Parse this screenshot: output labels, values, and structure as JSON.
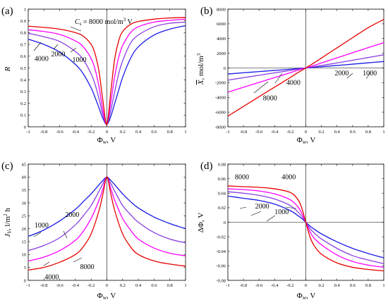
{
  "colors": {
    "c1000": "#1a1ae6",
    "c2000": "#8a3ee0",
    "c4000": "#ff00ff",
    "c8000": "#e60000"
  },
  "chart_data": [
    {
      "id": "a",
      "type": "line",
      "panel_label": "(a)",
      "xlabel": "Φw, V",
      "ylabel": "R",
      "xlim": [
        -1,
        1
      ],
      "ylim": [
        0,
        1
      ],
      "xticks": [
        "-1",
        "-0.8",
        "-0.6",
        "-0.4",
        "-0.2",
        "0",
        "0.2",
        "0.4",
        "0.6",
        "0.8",
        "1"
      ],
      "yticks": [
        "0",
        "0.1",
        "0.2",
        "0.3",
        "0.4",
        "0.5",
        "0.6",
        "0.7",
        "0.8",
        "0.9",
        "1"
      ],
      "x": [
        -1,
        -0.8,
        -0.6,
        -0.4,
        -0.3,
        -0.2,
        -0.15,
        -0.1,
        -0.05,
        0,
        0.05,
        0.1,
        0.15,
        0.2,
        0.3,
        0.4,
        0.6,
        0.8,
        1
      ],
      "series": [
        {
          "name": "1000",
          "color": "c1000",
          "values": [
            0.745,
            0.7,
            0.635,
            0.53,
            0.45,
            0.33,
            0.25,
            0.16,
            0.07,
            0.02,
            0.09,
            0.2,
            0.31,
            0.42,
            0.58,
            0.68,
            0.78,
            0.83,
            0.86
          ]
        },
        {
          "name": "2000",
          "color": "c2000",
          "values": [
            0.795,
            0.765,
            0.725,
            0.64,
            0.57,
            0.45,
            0.36,
            0.24,
            0.1,
            0.02,
            0.14,
            0.3,
            0.45,
            0.56,
            0.71,
            0.78,
            0.85,
            0.88,
            0.89
          ]
        },
        {
          "name": "4000",
          "color": "c4000",
          "values": [
            0.825,
            0.81,
            0.785,
            0.73,
            0.68,
            0.58,
            0.49,
            0.34,
            0.14,
            0.02,
            0.21,
            0.43,
            0.59,
            0.69,
            0.8,
            0.85,
            0.89,
            0.905,
            0.915
          ]
        },
        {
          "name": "8000",
          "color": "c8000",
          "values": [
            0.855,
            0.845,
            0.83,
            0.8,
            0.77,
            0.7,
            0.62,
            0.47,
            0.22,
            0.02,
            0.3,
            0.58,
            0.73,
            0.81,
            0.87,
            0.895,
            0.915,
            0.925,
            0.93
          ]
        }
      ],
      "annotations": [
        {
          "text": "4000",
          "x": -0.92,
          "y": 0.56
        },
        {
          "text": "2000",
          "x": -0.71,
          "y": 0.6
        },
        {
          "text": "1000",
          "x": -0.44,
          "y": 0.55
        }
      ],
      "header_label": {
        "prefix": "C",
        "sub": "s",
        "rest": " = 8000 mol/m",
        "sup": "3",
        "tail": " V"
      }
    },
    {
      "id": "b",
      "type": "line",
      "panel_label": "(b)",
      "xlabel": "Φw, V",
      "ylabel": "X, mol/m³",
      "xlim": [
        -1,
        1
      ],
      "ylim": [
        -8000,
        8000
      ],
      "xticks": [
        "-1",
        "-0.8",
        "-0.6",
        "-0.4",
        "-0.2",
        "0",
        "0.2",
        "0.4",
        "0.6",
        "0.8",
        "1"
      ],
      "yticks": [
        "-8000",
        "-6000",
        "-4000",
        "-2000",
        "0",
        "2000",
        "4000",
        "6000",
        "8000"
      ],
      "x": [
        -1,
        -0.8,
        -0.6,
        -0.4,
        -0.2,
        -0.1,
        0,
        0.1,
        0.2,
        0.4,
        0.6,
        0.8,
        1
      ],
      "series": [
        {
          "name": "1000",
          "color": "c1000",
          "values": [
            -820,
            -650,
            -490,
            -330,
            -170,
            -80,
            0,
            80,
            170,
            340,
            520,
            700,
            880
          ]
        },
        {
          "name": "2000",
          "color": "c2000",
          "values": [
            -1650,
            -1320,
            -990,
            -660,
            -330,
            -160,
            0,
            160,
            330,
            680,
            1050,
            1420,
            1790
          ]
        },
        {
          "name": "4000",
          "color": "c4000",
          "values": [
            -3300,
            -2620,
            -1960,
            -1300,
            -650,
            -300,
            0,
            320,
            680,
            1380,
            2070,
            2770,
            3450
          ]
        },
        {
          "name": "8000",
          "color": "c8000",
          "values": [
            -6550,
            -5230,
            -3910,
            -2600,
            -1300,
            -620,
            0,
            650,
            1350,
            2740,
            4120,
            5480,
            6600
          ]
        }
      ],
      "annotations": [
        {
          "text": "4000",
          "x": -0.25,
          "y": -2300
        },
        {
          "text": "8000",
          "x": -0.55,
          "y": -4400
        },
        {
          "text": "2000",
          "x": 0.37,
          "y": -1000
        },
        {
          "text": "1000",
          "x": 0.73,
          "y": -1000
        }
      ]
    },
    {
      "id": "c",
      "type": "line",
      "panel_label": "(c)",
      "xlabel": "Φw, V",
      "ylabel": "Jv, l/m² h",
      "xlim": [
        -1,
        1
      ],
      "ylim": [
        0,
        45
      ],
      "xticks": [
        "-1",
        "-0.8",
        "-0.6",
        "-0.4",
        "-0.2",
        "0",
        "0.2",
        "0.4",
        "0.6",
        "0.8",
        "1"
      ],
      "yticks": [
        "0",
        "5",
        "10",
        "15",
        "20",
        "25",
        "30",
        "35",
        "40",
        "45"
      ],
      "x": [
        -1,
        -0.8,
        -0.6,
        -0.4,
        -0.3,
        -0.2,
        -0.1,
        -0.05,
        0,
        0.05,
        0.1,
        0.2,
        0.3,
        0.4,
        0.6,
        0.8,
        1
      ],
      "series": [
        {
          "name": "1000",
          "color": "c1000",
          "values": [
            17,
            19.5,
            23,
            27.5,
            30.5,
            33.5,
            37,
            38.7,
            40,
            38.7,
            37,
            33.5,
            30.5,
            28,
            24.5,
            22,
            20
          ]
        },
        {
          "name": "2000",
          "color": "c2000",
          "values": [
            11.5,
            13.5,
            16.5,
            21.5,
            25,
            29,
            34.5,
            37.5,
            40,
            37.5,
            34.5,
            29,
            25.5,
            22.5,
            18.5,
            16,
            14.5
          ]
        },
        {
          "name": "4000",
          "color": "c4000",
          "values": [
            7.5,
            9,
            11.5,
            15.5,
            19,
            24,
            31,
            35.5,
            40,
            35.5,
            31,
            24,
            19.5,
            16,
            12.5,
            10.5,
            9.5
          ]
        },
        {
          "name": "8000",
          "color": "c8000",
          "values": [
            4,
            5,
            7,
            10,
            13,
            18,
            27,
            33.5,
            40,
            33.5,
            27,
            18,
            13,
            10,
            7.5,
            6.3,
            5.5
          ]
        }
      ],
      "annotations": [
        {
          "text": "1000",
          "x": -0.92,
          "y": 20.5
        },
        {
          "text": "2000",
          "x": -0.53,
          "y": 24.5
        },
        {
          "text": "4000",
          "x": -0.79,
          "y": 0.4
        },
        {
          "text": "8000",
          "x": -0.34,
          "y": 4.3
        }
      ]
    },
    {
      "id": "d",
      "type": "line",
      "panel_label": "(d)",
      "xlabel": "Φw, V",
      "ylabel": "ΔΦ, V",
      "xlim": [
        -1,
        1
      ],
      "ylim": [
        -0.08,
        0.08
      ],
      "xticks": [
        "-1",
        "-0.8",
        "-0.6",
        "-0.4",
        "-0.2",
        "0",
        "0.2",
        "0.4",
        "0.6",
        "0.8",
        "1"
      ],
      "yticks": [
        "-0.08",
        "-0.06",
        "-0.04",
        "-0.02",
        "0",
        "0.02",
        "0.04",
        "0.06",
        "0.08"
      ],
      "x": [
        -1,
        -0.8,
        -0.6,
        -0.4,
        -0.2,
        -0.1,
        -0.05,
        0,
        0.05,
        0.1,
        0.2,
        0.4,
        0.6,
        0.8,
        1
      ],
      "series": [
        {
          "name": "1000",
          "color": "c1000",
          "values": [
            0.036,
            0.033,
            0.03,
            0.025,
            0.016,
            0.009,
            0.005,
            0,
            -0.005,
            -0.009,
            -0.016,
            -0.027,
            -0.036,
            -0.043,
            -0.049
          ]
        },
        {
          "name": "2000",
          "color": "c2000",
          "values": [
            0.042,
            0.04,
            0.037,
            0.032,
            0.023,
            0.014,
            0.008,
            0,
            -0.008,
            -0.014,
            -0.023,
            -0.036,
            -0.046,
            -0.052,
            -0.057
          ]
        },
        {
          "name": "4000",
          "color": "c4000",
          "values": [
            0.046,
            0.045,
            0.043,
            0.039,
            0.031,
            0.021,
            0.012,
            0,
            -0.012,
            -0.021,
            -0.031,
            -0.045,
            -0.054,
            -0.059,
            -0.062
          ]
        },
        {
          "name": "8000",
          "color": "c8000",
          "values": [
            0.05,
            0.049,
            0.048,
            0.046,
            0.041,
            0.031,
            0.019,
            0,
            -0.019,
            -0.031,
            -0.044,
            -0.056,
            -0.062,
            -0.065,
            -0.067
          ]
        }
      ],
      "annotations": [
        {
          "text": "8000",
          "x": -0.91,
          "y": 0.059
        },
        {
          "text": "4000",
          "x": -0.31,
          "y": 0.059
        },
        {
          "text": "2000",
          "x": -0.65,
          "y": 0.019
        },
        {
          "text": "1000",
          "x": -0.4,
          "y": 0.011
        }
      ]
    }
  ]
}
